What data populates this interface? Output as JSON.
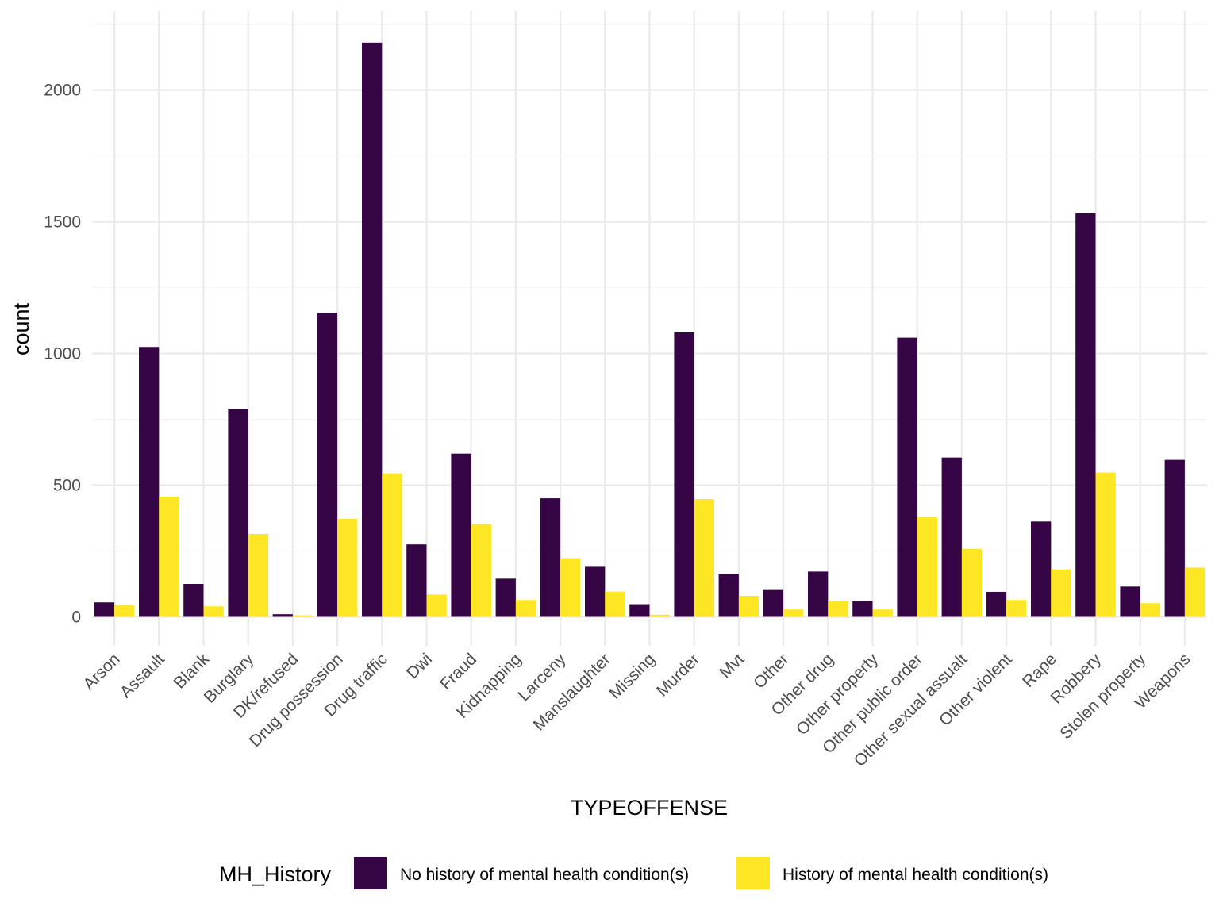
{
  "colors": {
    "series_0": "#350545",
    "series_1": "#FDE725",
    "grid_major": "#EBEBEB",
    "grid_minor": "#F5F5F5",
    "tick_text": "#4D4D4D",
    "background": "#FFFFFF"
  },
  "chart_data": {
    "type": "bar",
    "title": "",
    "xlabel": "TYPEOFFENSE",
    "ylabel": "count",
    "ylim": [
      -110,
      2300
    ],
    "yticks": [
      0,
      500,
      1000,
      1500,
      2000
    ],
    "grid": true,
    "legend": {
      "title": "MH_History",
      "position": "bottom"
    },
    "categories": [
      "Arson",
      "Assault",
      "Blank",
      "Burglary",
      "DK/refused",
      "Drug possession",
      "Drug traffic",
      "Dwi",
      "Fraud",
      "Kidnapping",
      "Larceny",
      "Manslaughter",
      "Missing",
      "Murder",
      "Mvt",
      "Other",
      "Other drug",
      "Other property",
      "Other public order",
      "Other sexual assualt",
      "Other violent",
      "Rape",
      "Robbery",
      "Stolen property",
      "Weapons"
    ],
    "series": [
      {
        "name": "No history of mental health condition(s)",
        "values": [
          55,
          1025,
          125,
          790,
          10,
          1155,
          2180,
          275,
          620,
          145,
          450,
          190,
          48,
          1080,
          162,
          102,
          172,
          60,
          1060,
          605,
          95,
          362,
          1532,
          115,
          596
        ]
      },
      {
        "name": "History of mental health condition(s)",
        "values": [
          45,
          456,
          40,
          315,
          6,
          372,
          545,
          85,
          352,
          64,
          223,
          96,
          8,
          447,
          80,
          28,
          60,
          28,
          380,
          258,
          64,
          180,
          548,
          52,
          187
        ]
      }
    ]
  }
}
